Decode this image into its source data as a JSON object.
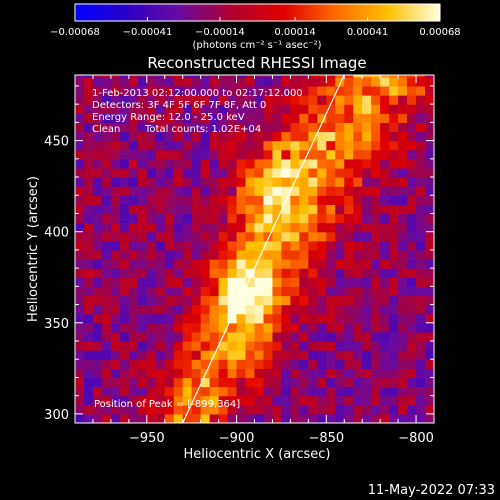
{
  "chart_data": {
    "type": "heatmap",
    "title": "Reconstructed RHESSI Image",
    "xlabel": "Heliocentric X (arcsec)",
    "ylabel": "Heliocentric Y (arcsec)",
    "xlim": [
      -990,
      -790
    ],
    "ylim": [
      295,
      486
    ],
    "x_ticks": [
      -950,
      -900,
      -850,
      -800
    ],
    "y_ticks": [
      300,
      350,
      400,
      450
    ],
    "x_tick_labels": [
      "−950",
      "−900",
      "−850",
      "−800"
    ],
    "y_tick_labels": [
      "300",
      "350",
      "400",
      "450"
    ],
    "colorbar": {
      "range": [
        -0.00068,
        0.00068
      ],
      "ticks": [
        -0.00068,
        -0.00041,
        -0.00014,
        0.00014,
        0.00041,
        0.00068
      ],
      "tick_labels": [
        "−0.00068",
        "−0.00041",
        "−0.00014",
        "0.00014",
        "0.00041",
        "0.00068"
      ],
      "unit_label": "(photons cm⁻² s⁻¹ asec⁻²)",
      "colors": [
        "#0000ff",
        "#2a00c8",
        "#6a0ba0",
        "#b00030",
        "#e00000",
        "#ff6a00",
        "#ffc000",
        "#ffffe0"
      ]
    },
    "annotations": {
      "time": "1-Feb-2013 02:12:00.000 to 02:17:12.000",
      "detectors": "Detectors: 3F 4F 5F 6F 7F 8F, Att 0",
      "energy": "Energy Range: 12.0 - 25.0 keV",
      "clean": "Clean",
      "total_counts": "Total counts: 1.02E+04",
      "peak": "Position of Peak = [-899,364]"
    },
    "peak_position": [
      -899,
      364
    ],
    "limb_line": [
      [
        -930,
        295
      ],
      [
        -840,
        486
      ]
    ],
    "emission_ridges": [
      {
        "from": [
          -925,
          300
        ],
        "to": [
          -895,
          372
        ],
        "width": 14,
        "level": 0.00058
      },
      {
        "from": [
          -895,
          372
        ],
        "to": [
          -875,
          430
        ],
        "width": 12,
        "level": 0.0003
      },
      {
        "from": [
          -870,
          420
        ],
        "to": [
          -820,
          486
        ],
        "width": 20,
        "level": 0.0006
      },
      {
        "from": [
          -890,
          330
        ],
        "to": [
          -860,
          395
        ],
        "width": 10,
        "level": 0.00025
      }
    ],
    "grid": false
  },
  "footer": {
    "timestamp": "11-May-2022 07:33"
  }
}
